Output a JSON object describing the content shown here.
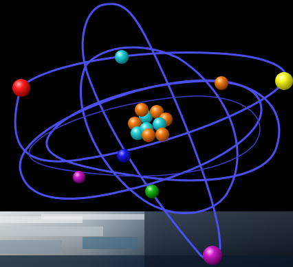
{
  "scene": {
    "colors": {
      "background": "#000000",
      "orbit": "#4b4ff0",
      "proton": "#f07a10",
      "neutron": "#22c9cf",
      "electron_red": "#e01010",
      "electron_yellow": "#f2f21a",
      "electron_cyan": "#20c8cc",
      "electron_orange": "#f07a10",
      "electron_blue": "#1414e0",
      "electron_magenta": "#c81ac0",
      "electron_green": "#18b818",
      "ground_light": "#d8dde0",
      "ground_dark": "#1d3a52"
    }
  }
}
